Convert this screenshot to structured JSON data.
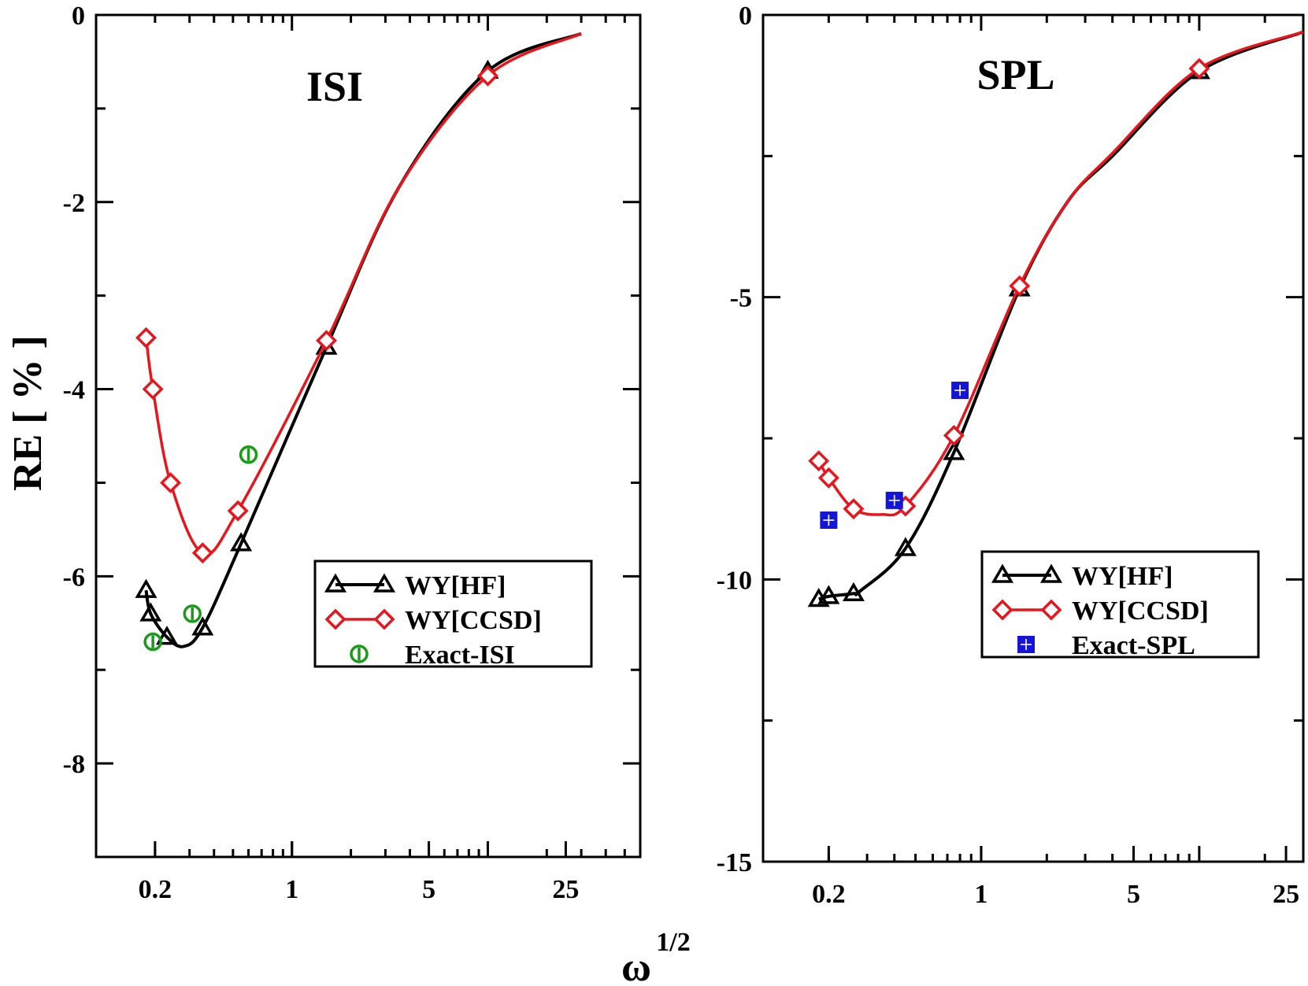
{
  "figure": {
    "ylabel": "RE [ % ]",
    "xlabel_base": "ω",
    "xlabel_exp": "1/2"
  },
  "chart_data": [
    {
      "type": "line",
      "title": "ISI",
      "x_scale": "log",
      "xlim": [
        0.1,
        60
      ],
      "ylim": [
        -9,
        0
      ],
      "x_ticks": [
        0.2,
        1,
        5,
        25
      ],
      "x_tick_labels": [
        "0.2",
        "1",
        "5",
        "25"
      ],
      "y_ticks": [
        0,
        -2,
        -4,
        -6,
        -8
      ],
      "y_tick_labels": [
        "0",
        "-2",
        "-4",
        "-6",
        "-8"
      ],
      "y_minor_ticks": [
        -1,
        -3,
        -5,
        -7
      ],
      "legend_position": "lower-right",
      "series": [
        {
          "name": "WY[HF]",
          "color": "#000000",
          "marker": "triangle",
          "line": true,
          "x": [
            0.18,
            0.19,
            0.23,
            0.28,
            0.35,
            0.55,
            1.5,
            3.5,
            10,
            30
          ],
          "y": [
            -6.15,
            -6.4,
            -6.65,
            -6.75,
            -6.55,
            -5.65,
            -3.55,
            -1.85,
            -0.6,
            -0.2
          ],
          "marker_idx": [
            0,
            1,
            2,
            4,
            5,
            6,
            8
          ]
        },
        {
          "name": "WY[CCSD]",
          "color": "#e8161c",
          "marker": "diamond",
          "line": true,
          "x": [
            0.18,
            0.195,
            0.24,
            0.35,
            0.53,
            1.5,
            3.5,
            10,
            30
          ],
          "y": [
            -3.45,
            -4.0,
            -5.0,
            -5.75,
            -5.3,
            -3.48,
            -1.85,
            -0.65,
            -0.2
          ],
          "marker_idx": [
            0,
            1,
            2,
            3,
            4,
            5,
            7
          ]
        },
        {
          "name": "Exact-ISI",
          "color": "#1a9a1a",
          "marker": "circle",
          "line": false,
          "x": [
            0.195,
            0.31,
            0.6
          ],
          "y": [
            -6.7,
            -6.4,
            -4.7
          ],
          "marker_idx": [
            0,
            1,
            2
          ]
        }
      ]
    },
    {
      "type": "line",
      "title": "SPL",
      "x_scale": "log",
      "xlim": [
        0.1,
        30
      ],
      "ylim": [
        -15,
        0
      ],
      "x_ticks": [
        0.2,
        1,
        5,
        25
      ],
      "x_tick_labels": [
        "0.2",
        "1",
        "5",
        "25"
      ],
      "y_ticks": [
        0,
        -5,
        -10,
        -15
      ],
      "y_tick_labels": [
        "0",
        "-5",
        "-10",
        "-15"
      ],
      "y_minor_ticks": [
        -2.5,
        -7.5,
        -12.5
      ],
      "legend_position": "lower-right",
      "series": [
        {
          "name": "WY[HF]",
          "color": "#000000",
          "marker": "triangle",
          "line": true,
          "x": [
            0.18,
            0.2,
            0.26,
            0.28,
            0.45,
            0.75,
            1.5,
            2.5,
            4,
            10,
            30
          ],
          "y": [
            -10.35,
            -10.3,
            -10.25,
            -10.2,
            -9.45,
            -7.75,
            -4.85,
            -3.3,
            -2.5,
            -1.0,
            -0.3
          ],
          "marker_idx": [
            0,
            1,
            2,
            4,
            5,
            6,
            9
          ]
        },
        {
          "name": "WY[CCSD]",
          "color": "#e8161c",
          "marker": "diamond",
          "line": true,
          "x": [
            0.18,
            0.2,
            0.26,
            0.35,
            0.45,
            0.75,
            1.5,
            2.5,
            4,
            10,
            30
          ],
          "y": [
            -7.9,
            -8.2,
            -8.75,
            -8.85,
            -8.7,
            -7.45,
            -4.8,
            -3.3,
            -2.45,
            -0.95,
            -0.3
          ],
          "marker_idx": [
            0,
            1,
            2,
            4,
            5,
            6,
            9
          ]
        },
        {
          "name": "Exact-SPL",
          "color": "#1515d8",
          "marker": "square",
          "line": false,
          "x": [
            0.2,
            0.4,
            0.8
          ],
          "y": [
            -8.95,
            -8.6,
            -6.65
          ],
          "marker_idx": [
            0,
            1,
            2
          ]
        }
      ]
    }
  ]
}
